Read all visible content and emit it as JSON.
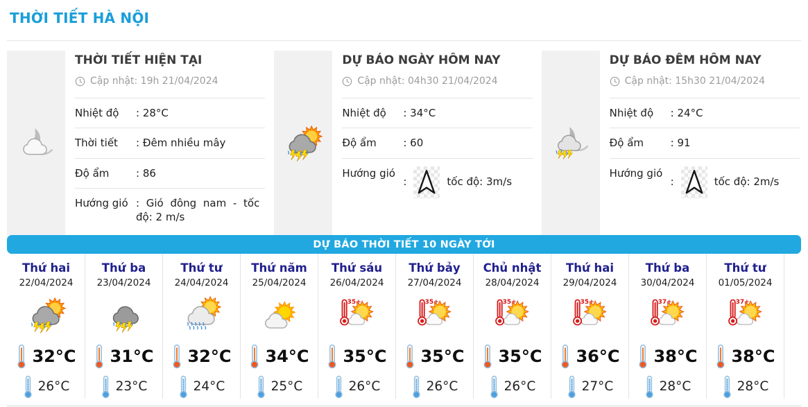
{
  "page": {
    "title": "THỜI TIẾT HÀ NỘI"
  },
  "colors": {
    "accent_blue": "#1a9ed9",
    "banner_blue": "#21a8e0",
    "day_name_navy": "#21218f"
  },
  "panels": [
    {
      "title": "THỜI TIẾT HIỆN TẠI",
      "updated": "Cập nhật: 19h 21/04/2024",
      "icon": "night-cloud-icon",
      "rows": [
        {
          "label": "Nhiệt độ",
          "value": ": 28°C"
        },
        {
          "label": "Thời tiết",
          "value": ": Đêm nhiều mây"
        },
        {
          "label": "Độ ẩm",
          "value": ": 86"
        },
        {
          "label": "Hướng gió",
          "value": ": Gió đông nam - tốc độ: 2 m/s"
        }
      ]
    },
    {
      "title": "DỰ BÁO NGÀY HÔM NAY",
      "updated": "Cập nhật: 04h30 21/04/2024",
      "icon": "storm-sun-icon",
      "rows": [
        {
          "label": "Nhiệt độ",
          "value": ": 34°C"
        },
        {
          "label": "Độ ẩm",
          "value": ": 60"
        },
        {
          "label": "Hướng gió",
          "value": ":",
          "wind": {
            "direction_icon": "wind-arrow-north-icon",
            "speed_text": "tốc độ: 3m/s"
          }
        }
      ]
    },
    {
      "title": "DỰ BÁO ĐÊM HÔM NAY",
      "updated": "Cập nhật: 15h30 21/04/2024",
      "icon": "night-storm-icon",
      "rows": [
        {
          "label": "Nhiệt độ",
          "value": ": 24°C"
        },
        {
          "label": "Độ ẩm",
          "value": ": 91"
        },
        {
          "label": "Hướng gió",
          "value": ":",
          "wind": {
            "direction_icon": "wind-arrow-north-icon",
            "speed_text": "tốc độ: 2m/s"
          }
        }
      ]
    }
  ],
  "forecast": {
    "banner": "DỰ BÁO THỜI TIẾT 10 NGÀY TỚI",
    "days": [
      {
        "day": "Thứ hai",
        "date": "22/04/2024",
        "icon": "storm-sun-icon",
        "high": "32°C",
        "low": "26°C"
      },
      {
        "day": "Thứ ba",
        "date": "23/04/2024",
        "icon": "storm-icon",
        "high": "31°C",
        "low": "23°C"
      },
      {
        "day": "Thứ tư",
        "date": "24/04/2024",
        "icon": "rain-sun-icon",
        "high": "32°C",
        "low": "24°C"
      },
      {
        "day": "Thứ năm",
        "date": "25/04/2024",
        "icon": "partly-cloudy-icon",
        "high": "34°C",
        "low": "25°C"
      },
      {
        "day": "Thứ sáu",
        "date": "26/04/2024",
        "icon": "hot-sun-icon",
        "hot_label": "35+",
        "high": "35°C",
        "low": "26°C"
      },
      {
        "day": "Thứ bảy",
        "date": "27/04/2024",
        "icon": "hot-sun-icon",
        "hot_label": "35+",
        "high": "35°C",
        "low": "26°C"
      },
      {
        "day": "Chủ nhật",
        "date": "28/04/2024",
        "icon": "hot-sun-icon",
        "hot_label": "35+",
        "high": "35°C",
        "low": "26°C"
      },
      {
        "day": "Thứ hai",
        "date": "29/04/2024",
        "icon": "hot-sun-icon",
        "hot_label": "35+",
        "high": "36°C",
        "low": "27°C"
      },
      {
        "day": "Thứ ba",
        "date": "30/04/2024",
        "icon": "hot-sun-icon",
        "hot_label": "37+",
        "high": "38°C",
        "low": "28°C"
      },
      {
        "day": "Thứ tư",
        "date": "01/05/2024",
        "icon": "hot-sun-icon",
        "hot_label": "37+",
        "high": "38°C",
        "low": "28°C"
      }
    ]
  }
}
